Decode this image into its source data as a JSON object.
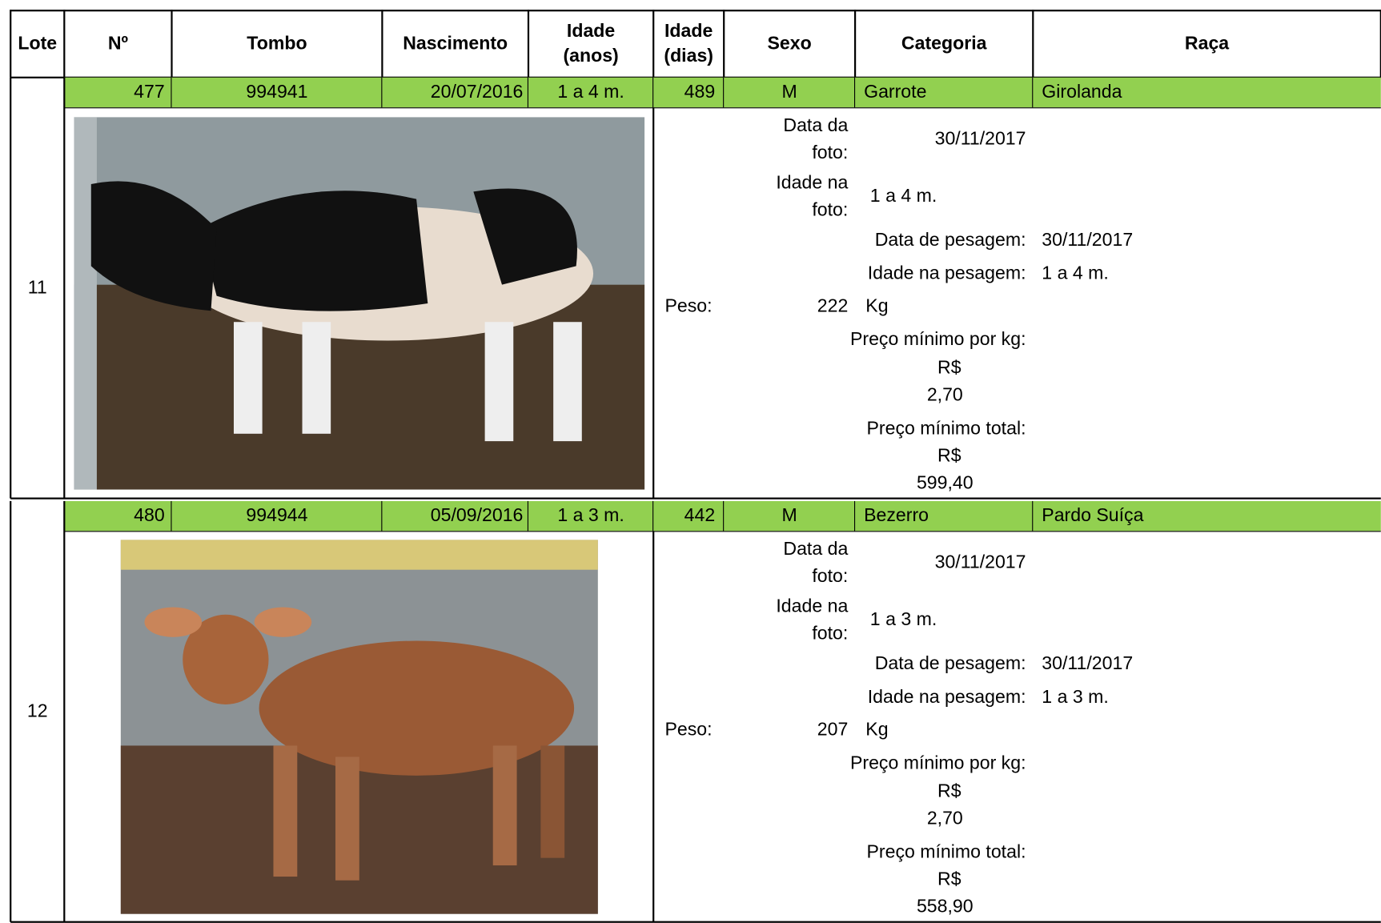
{
  "header": {
    "columns": [
      "Lote",
      "Nº",
      "Tombo",
      "Nascimento",
      "Idade\n(anos)",
      "Idade\n(dias)",
      "Sexo",
      "Categoria",
      "Raça"
    ]
  },
  "lots": [
    {
      "row": [
        "11",
        "477",
        "994941",
        "20/07/2016",
        "1 a 4 m.",
        "489",
        "M",
        "Garrote",
        "Girolanda"
      ],
      "details": {
        "data_foto_label": "Data da\nfoto:",
        "data_foto": "30/11/2017",
        "idade_foto_label": "Idade na\nfoto:",
        "idade_foto": "1 a 4 m.",
        "data_pesagem_label": "Data de pesagem:",
        "data_pesagem": "30/11/2017",
        "idade_pesagem_label": "Idade na pesagem:",
        "idade_pesagem": "1 a 4 m.",
        "peso_label": "Peso:",
        "peso": "222",
        "peso_unit": "Kg",
        "preco_kg_label": "Preço mínimo por kg:",
        "preco_kg_currency": "R$",
        "preco_kg": "2,70",
        "preco_total_label": "Preço mínimo total:",
        "preco_total_currency": "R$",
        "preco_total": "599,40"
      }
    },
    {
      "row": [
        "12",
        "480",
        "994944",
        "05/09/2016",
        "1 a 3 m.",
        "442",
        "M",
        "Bezerro",
        "Pardo Suíça"
      ],
      "details": {
        "data_foto_label": "Data da\nfoto:",
        "data_foto": "30/11/2017",
        "idade_foto_label": "Idade na\nfoto:",
        "idade_foto": "1 a 3 m.",
        "data_pesagem_label": "Data de pesagem:",
        "data_pesagem": "30/11/2017",
        "idade_pesagem_label": "Idade na pesagem:",
        "idade_pesagem": "1 a 3 m.",
        "peso_label": "Peso:",
        "peso": "207",
        "peso_unit": "Kg",
        "preco_kg_label": "Preço mínimo por kg:",
        "preco_kg_currency": "R$",
        "preco_kg": "2,70",
        "preco_total_label": "Preço mínimo total:",
        "preco_total_currency": "R$",
        "preco_total": "558,90"
      }
    }
  ]
}
